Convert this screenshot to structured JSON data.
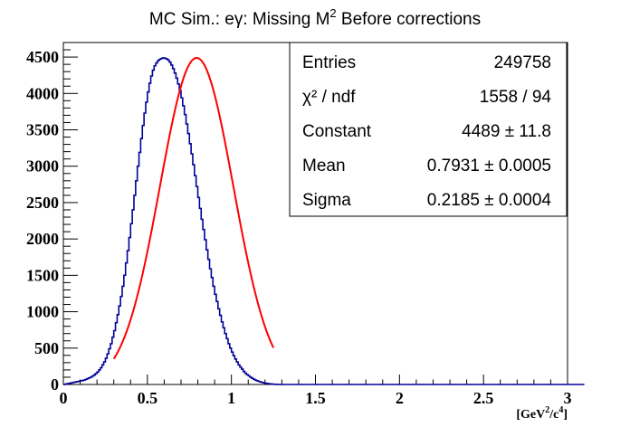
{
  "chart_data": {
    "type": "histogram",
    "title": "MC Sim.: eγ: Missing M² Before corrections",
    "title_parts": {
      "pre": "MC Sim.: eγ: Missing M",
      "sup": "2",
      "post": " Before corrections"
    },
    "xlabel": "[GeV²/c⁴]",
    "xlabel_parts": {
      "a": "[GeV",
      "s1": "2",
      "b": "/c",
      "s2": "4",
      "c": "]"
    },
    "xlim": [
      0,
      3
    ],
    "ylim": [
      0,
      4700
    ],
    "xticks": [
      0,
      0.5,
      1,
      1.5,
      2,
      2.5,
      3
    ],
    "xtick_labels": [
      "0",
      "0.5",
      "1",
      "1.5",
      "2",
      "2.5",
      "3"
    ],
    "yticks": [
      0,
      500,
      1000,
      1500,
      2000,
      2500,
      3000,
      3500,
      4000,
      4500
    ],
    "ytick_labels": [
      "0",
      "500",
      "1000",
      "1500",
      "2000",
      "2500",
      "3000",
      "3500",
      "4000",
      "4500"
    ],
    "histogram": {
      "name": "data",
      "color": "#000099",
      "bin_width": 0.01,
      "x_start": 0.0,
      "counts": [
        0,
        5,
        10,
        15,
        20,
        25,
        30,
        35,
        40,
        45,
        50,
        55,
        60,
        70,
        80,
        90,
        100,
        115,
        130,
        150,
        170,
        200,
        230,
        270,
        310,
        360,
        420,
        490,
        560,
        650,
        740,
        850,
        960,
        1080,
        1210,
        1350,
        1500,
        1670,
        1840,
        2020,
        2210,
        2400,
        2600,
        2800,
        3000,
        3190,
        3380,
        3560,
        3730,
        3880,
        4020,
        4140,
        4240,
        4320,
        4380,
        4420,
        4450,
        4470,
        4480,
        4490,
        4485,
        4475,
        4460,
        4430,
        4390,
        4340,
        4280,
        4210,
        4130,
        4040,
        3940,
        3830,
        3710,
        3580,
        3450,
        3310,
        3170,
        3020,
        2870,
        2720,
        2570,
        2420,
        2270,
        2130,
        1990,
        1850,
        1720,
        1590,
        1470,
        1350,
        1240,
        1140,
        1040,
        950,
        860,
        780,
        700,
        630,
        560,
        500,
        445,
        395,
        350,
        310,
        270,
        240,
        210,
        180,
        155,
        135,
        118,
        100,
        85,
        72,
        60,
        50,
        42,
        35,
        28,
        22,
        17,
        13,
        10,
        7,
        5,
        3,
        2,
        1,
        1,
        0,
        0,
        0,
        0,
        0,
        0,
        0,
        0,
        0,
        0,
        0,
        0,
        0,
        0,
        0,
        0,
        0,
        0,
        0,
        0,
        0,
        0,
        0,
        0,
        0,
        0,
        0,
        0,
        0,
        0,
        0,
        0,
        0,
        0,
        0,
        0,
        0,
        0,
        0,
        0,
        0,
        0,
        0,
        0,
        0,
        0,
        0,
        0,
        0,
        0,
        0,
        0,
        0,
        0,
        0,
        0,
        0,
        0,
        0,
        0,
        0,
        0,
        0,
        0,
        0,
        0,
        0,
        0,
        0,
        0,
        0,
        0,
        0,
        0,
        0,
        0,
        0,
        0,
        0,
        0,
        0,
        0,
        0,
        0,
        0,
        0,
        0,
        0,
        0,
        0,
        0,
        0,
        0,
        0,
        0,
        0,
        0,
        0,
        0,
        0,
        0,
        0,
        0,
        0,
        0,
        0,
        0,
        0,
        0,
        0,
        0,
        0,
        0,
        0,
        0,
        0,
        0,
        0,
        0,
        0,
        0,
        0,
        0,
        0,
        0,
        0,
        0,
        0,
        0,
        0,
        0,
        0,
        0,
        0,
        0,
        0,
        0,
        0,
        0,
        0,
        0,
        0,
        0,
        0,
        0,
        0,
        0,
        0,
        0,
        0,
        0,
        0,
        0,
        0,
        0,
        0,
        0,
        0,
        0,
        0,
        0,
        0,
        0,
        0,
        0,
        0,
        0,
        0,
        0,
        0,
        0,
        0,
        0,
        0,
        0,
        0,
        0,
        0,
        0,
        0,
        0
      ]
    },
    "fit": {
      "name": "gaus",
      "color": "#ff0000",
      "function": "gaussian",
      "constant": 4489,
      "mean": 0.7931,
      "sigma": 0.2185,
      "range": [
        0.3,
        1.25
      ]
    },
    "stats": {
      "rows": [
        {
          "label": "Entries",
          "value": "249758"
        },
        {
          "label": "χ² / ndf",
          "value": "1558 / 94"
        },
        {
          "label": "Constant",
          "value": "4489 ± 11.8"
        },
        {
          "label": "Mean",
          "value": "0.7931 ± 0.0005"
        },
        {
          "label": "Sigma",
          "value": "0.2185 ± 0.0004"
        }
      ]
    },
    "grid": false,
    "stats_box_placement": "top-right"
  }
}
